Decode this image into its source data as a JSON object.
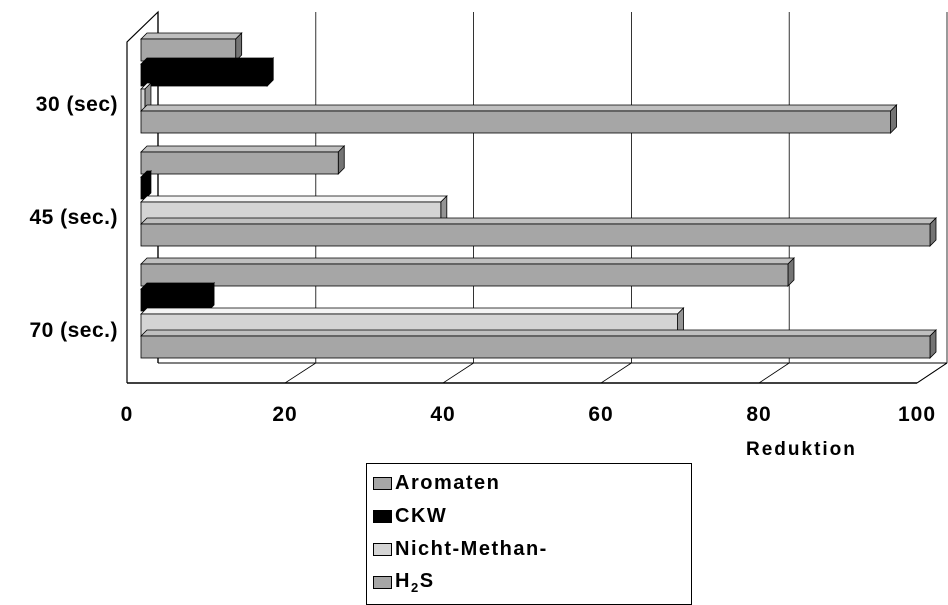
{
  "chart_data": {
    "type": "bar",
    "orientation": "horizontal",
    "three_d": true,
    "categories": [
      "30 (sec)",
      "45 (sec.)",
      "70 (sec.)"
    ],
    "series": [
      {
        "name": "Aromaten",
        "color": "#a6a6a6",
        "values": [
          12,
          25,
          82
        ]
      },
      {
        "name": "CKW",
        "color": "#000000",
        "values": [
          16,
          0.5,
          8.5
        ]
      },
      {
        "name": "Nicht-Methan-",
        "color": "#d4d4d4",
        "values": [
          0.5,
          38,
          68
        ]
      },
      {
        "name": "H2S",
        "color": "#a6a6a6",
        "values": [
          95,
          100,
          100
        ]
      }
    ],
    "x_ticks": [
      "0",
      "20",
      "40",
      "60",
      "80",
      "100"
    ],
    "xlim": [
      0,
      100
    ],
    "xlabel": "Reduktion",
    "grid": true,
    "legend_position": "bottom-center"
  },
  "legend": {
    "items": [
      {
        "label": "Aromaten",
        "color": "#a6a6a6"
      },
      {
        "label": "CKW",
        "color": "#000000"
      },
      {
        "label": "Nicht-Methan-",
        "color": "#d4d4d4"
      },
      {
        "label": "H",
        "sub": "2",
        "suffix": "S",
        "color": "#a6a6a6"
      }
    ]
  }
}
